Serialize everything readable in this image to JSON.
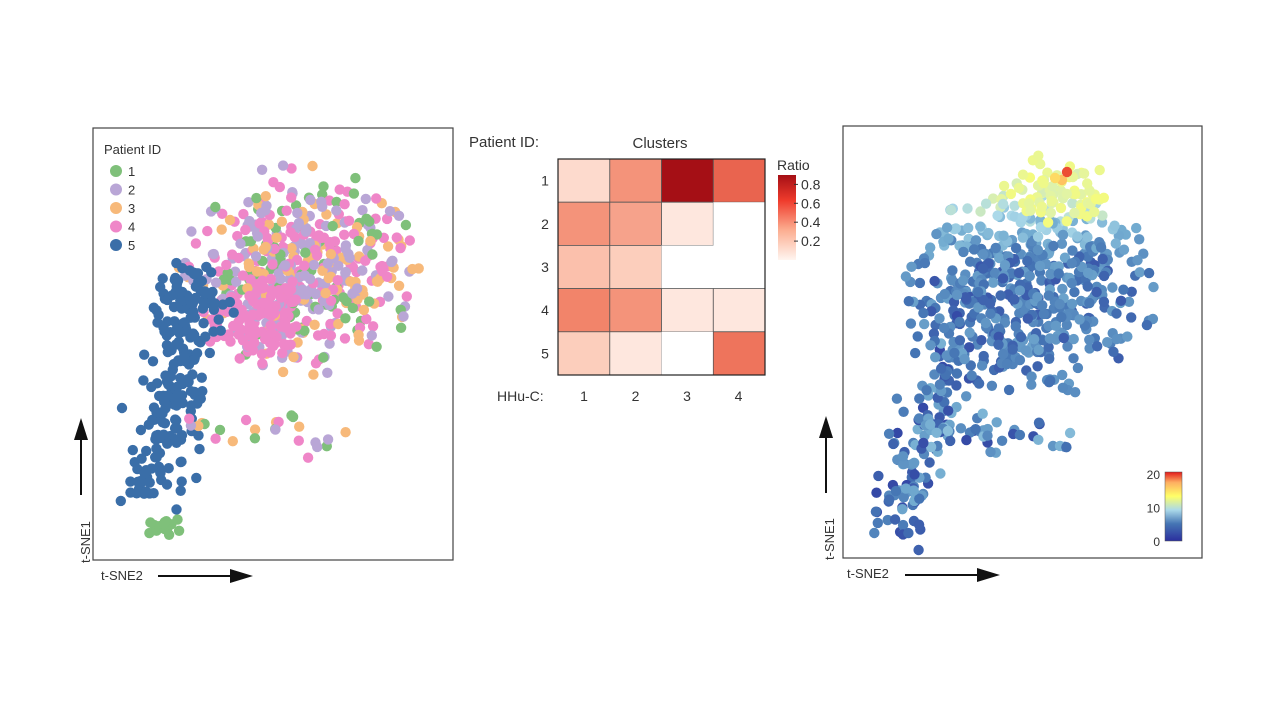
{
  "chart_data": [
    {
      "type": "scatter",
      "panel": "left",
      "xlabel": "t-SNE2",
      "ylabel": "t-SNE1",
      "legend_title": "Patient ID",
      "legend_position": "top-left",
      "categories": [
        "1",
        "2",
        "3",
        "4",
        "5"
      ],
      "colors": {
        "1": "#7fc07a",
        "2": "#b9a6d6",
        "3": "#f7b97a",
        "4": "#ef86c8",
        "5": "#3a6ea8"
      },
      "grid": false
    },
    {
      "type": "heatmap",
      "panel": "middle",
      "title": "Clusters",
      "row_label": "Patient ID:",
      "col_label": "HHu-C:",
      "rows": [
        "1",
        "2",
        "3",
        "4",
        "5"
      ],
      "cols": [
        "1",
        "2",
        "3",
        "4"
      ],
      "values": [
        [
          0.15,
          0.4,
          0.9,
          0.55
        ],
        [
          0.4,
          0.35,
          0.1,
          0.0
        ],
        [
          0.25,
          0.2,
          0.0,
          0.0
        ],
        [
          0.45,
          0.4,
          0.1,
          0.1
        ],
        [
          0.2,
          0.1,
          0.0,
          0.5
        ]
      ],
      "legend_title": "Ratio",
      "legend_ticks": [
        "0.8",
        "0.6",
        "0.4",
        "0.2"
      ],
      "legend_tick_values": [
        0.8,
        0.6,
        0.4,
        0.2
      ],
      "range": [
        0,
        0.9
      ],
      "colors": {
        "low": "#ffffff",
        "mid": "#f2846a",
        "high": "#a50f15"
      }
    },
    {
      "type": "scatter",
      "panel": "right",
      "xlabel": "t-SNE2",
      "ylabel": "t-SNE1",
      "colorbar_ticks": [
        "20",
        "10",
        "0"
      ],
      "colorbar_tick_values": [
        20,
        10,
        0
      ],
      "colorbar_position": "bottom-right",
      "colorscale": [
        "#2b2f9e",
        "#4575b4",
        "#74add1",
        "#abd9e9",
        "#e0f3a8",
        "#ffff66",
        "#fdae61",
        "#e31a1c"
      ],
      "grid": false
    }
  ]
}
